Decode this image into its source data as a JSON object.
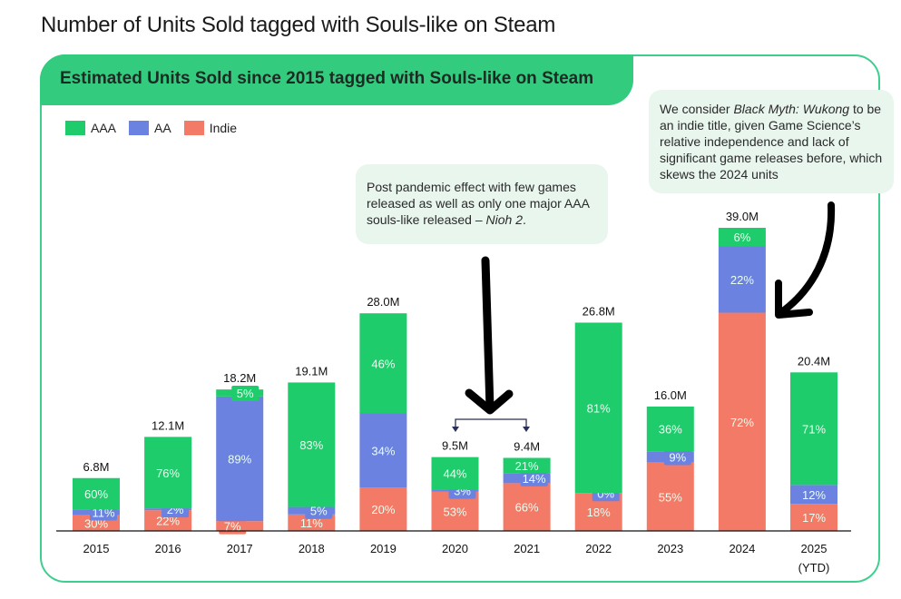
{
  "page_title": "Number of Units Sold tagged with Souls-like on Steam",
  "colors": {
    "AAA": "#1fcc6b",
    "AA": "#6b82e0",
    "Indie": "#f47a68",
    "panel_border": "#3ecf8e",
    "header_bg": "#33cc7f",
    "note_bg": "#e8f6ee"
  },
  "annotations": {
    "note1": {
      "text": "Post pandemic effect with few games released as well as only one major AAA souls-like released – ",
      "italic": "Nioh 2",
      "suffix": "."
    },
    "note2": {
      "prefix": "We consider ",
      "italic": "Black Myth: Wukong",
      "text": " to be an indie title, given Game Science’s relative independence and lack of significant game releases before, which skews the 2024 units"
    }
  },
  "chart_data": {
    "type": "bar",
    "stacked": true,
    "title": "Estimated Units Sold since 2015 tagged with Souls-like on Steam",
    "xlabel": "",
    "ylabel": "",
    "ylim": [
      0,
      39.0
    ],
    "grid": false,
    "legend": {
      "position": "top-left",
      "entries": [
        "AAA",
        "AA",
        "Indie"
      ]
    },
    "categories": [
      "2015",
      "2016",
      "2017",
      "2018",
      "2019",
      "2020",
      "2021",
      "2022",
      "2023",
      "2024",
      "2025"
    ],
    "category_sublabels": [
      "",
      "",
      "",
      "",
      "",
      "",
      "",
      "",
      "",
      "",
      "(YTD)"
    ],
    "totals": [
      6.8,
      12.1,
      18.2,
      19.1,
      28.0,
      9.5,
      9.4,
      26.8,
      16.0,
      39.0,
      20.4
    ],
    "total_labels": [
      "6.8M",
      "12.1M",
      "18.2M",
      "19.1M",
      "28.0M",
      "9.5M",
      "9.4M",
      "26.8M",
      "16.0M",
      "39.0M",
      "20.4M"
    ],
    "series": [
      {
        "name": "Indie",
        "unit": "percent",
        "values": [
          30,
          22,
          7,
          11,
          20,
          53,
          66,
          18,
          55,
          72,
          17
        ]
      },
      {
        "name": "AA",
        "unit": "percent",
        "values": [
          11,
          2,
          89,
          5,
          34,
          3,
          14,
          0,
          9,
          22,
          12
        ]
      },
      {
        "name": "AAA",
        "unit": "percent",
        "values": [
          60,
          76,
          5,
          83,
          46,
          44,
          21,
          81,
          36,
          6,
          71
        ]
      }
    ]
  }
}
